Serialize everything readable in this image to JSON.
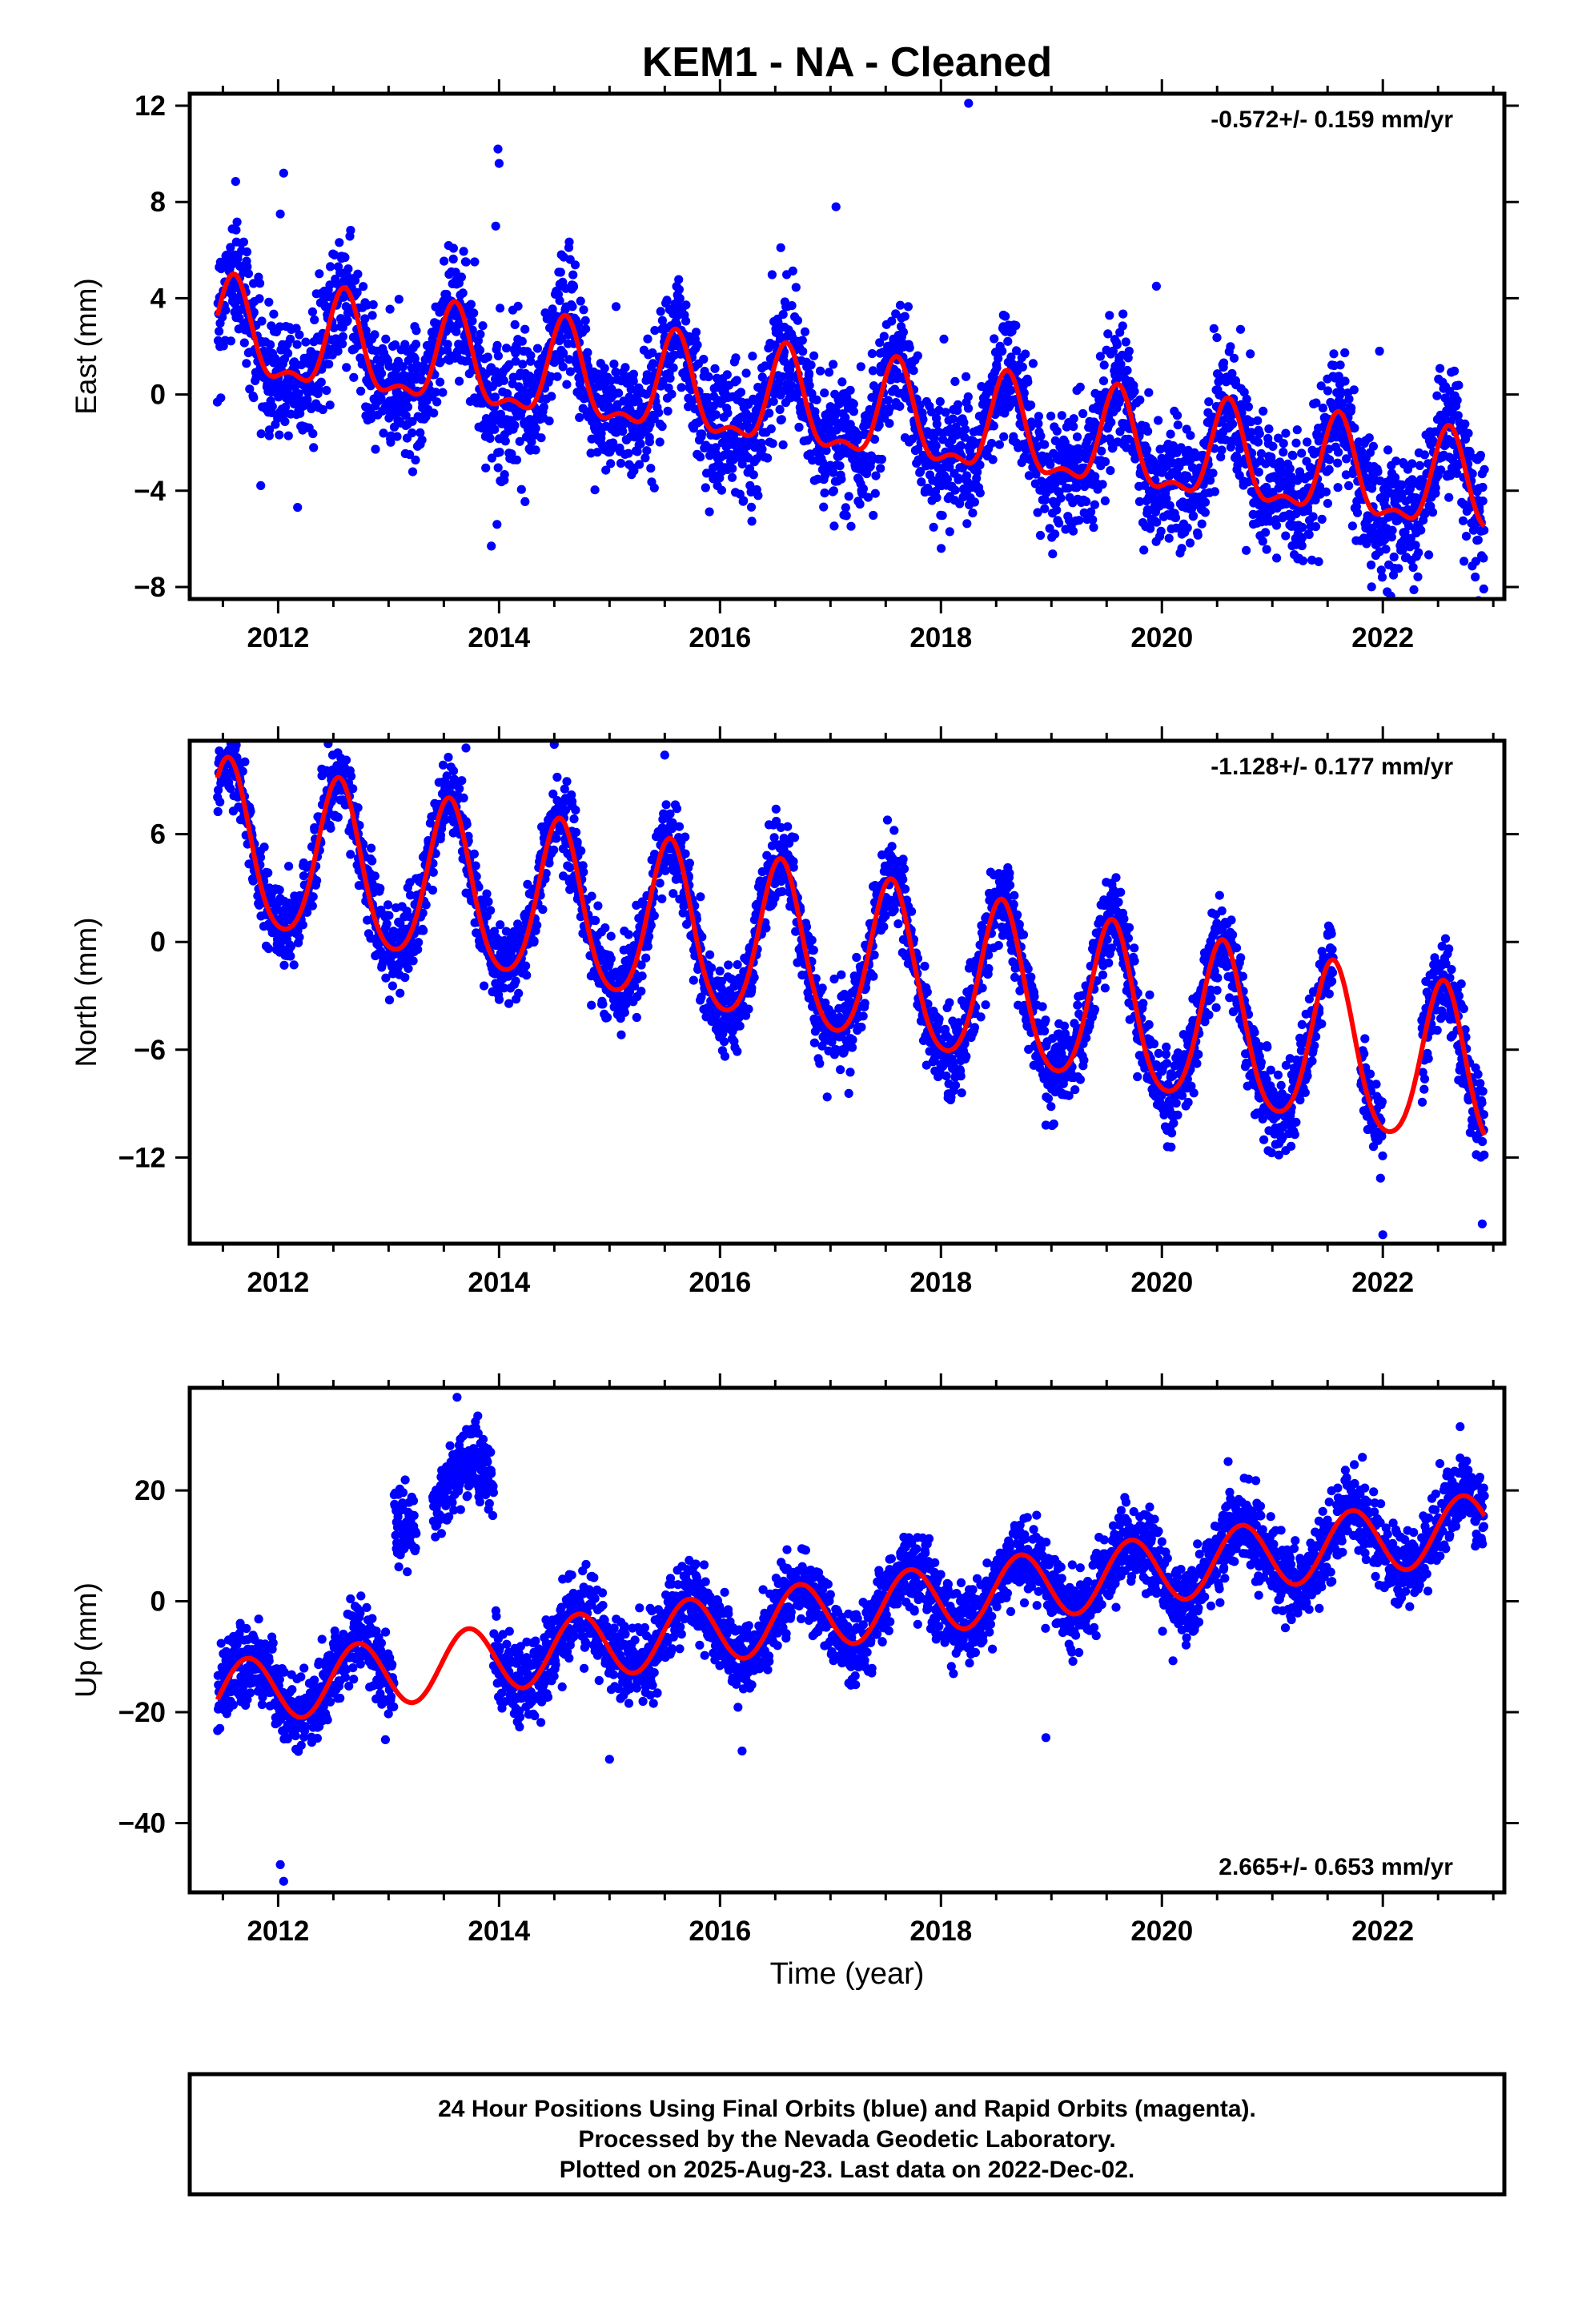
{
  "title": "KEM1  - NA - Cleaned",
  "colors": {
    "final_orbits": "#0000ff",
    "model_fit": "#ff0000",
    "rapid_orbits": "#ff00ff"
  },
  "chart_data": [
    {
      "type": "scatter",
      "component": "east",
      "ylabel": "East (mm)",
      "xlabel": "",
      "xlim": [
        2011.2,
        2023.1
      ],
      "ylim": [
        -8.5,
        12.5
      ],
      "x_ticks": [
        2012,
        2014,
        2016,
        2018,
        2020,
        2022
      ],
      "y_ticks": [
        -8,
        -4,
        0,
        4,
        8,
        12
      ],
      "rate_text": "-0.572+/- 0.159 mm/yr",
      "rate_position": "top-right",
      "model": {
        "start": 2011.45,
        "end": 2022.92,
        "offset": 2.4,
        "trend": -0.572,
        "annual_amp": 1.9,
        "annual_peak": 2011.6,
        "semiannual_amp": 0.8,
        "semiannual_peak": 2011.6,
        "steps": []
      },
      "scatter": {
        "noise": 1.3,
        "density_per_year": 330,
        "gaps": []
      },
      "outliers": [
        [
          2012.05,
          9.2
        ],
        [
          2012.02,
          7.5
        ],
        [
          2013.99,
          10.2
        ],
        [
          2014.0,
          9.6
        ],
        [
          2013.97,
          7.0
        ],
        [
          2017.05,
          7.8
        ],
        [
          2018.25,
          12.1
        ],
        [
          2016.55,
          6.1
        ],
        [
          2013.93,
          -6.3
        ],
        [
          2019.95,
          4.5
        ],
        [
          2021.97,
          1.8
        ],
        [
          2022.04,
          -8.2
        ],
        [
          2019.98,
          -5.9
        ]
      ]
    },
    {
      "type": "scatter",
      "component": "north",
      "ylabel": "North (mm)",
      "xlabel": "",
      "xlim": [
        2011.2,
        2023.1
      ],
      "ylim": [
        -16.8,
        11.2
      ],
      "x_ticks": [
        2012,
        2014,
        2016,
        2018,
        2020,
        2022
      ],
      "y_ticks": [
        -12,
        -6,
        0,
        6
      ],
      "rate_text": "-1.128+/- 0.177 mm/yr",
      "rate_position": "top-right",
      "model": {
        "start": 2011.45,
        "end": 2022.92,
        "offset": 5.3,
        "trend": -1.128,
        "annual_amp": 4.5,
        "annual_peak": 2011.55,
        "semiannual_amp": 0.6,
        "semiannual_peak": 2011.55,
        "steps": []
      },
      "scatter": {
        "noise": 1.15,
        "density_per_year": 330,
        "gaps": [
          [
            2021.55,
            2021.8
          ],
          [
            2022.0,
            2022.35
          ]
        ]
      },
      "outliers": [
        [
          2014.5,
          11.0
        ],
        [
          2015.5,
          10.4
        ],
        [
          2013.7,
          10.8
        ],
        [
          2020.05,
          -11.4
        ],
        [
          2022.0,
          -16.3
        ],
        [
          2022.9,
          -15.7
        ],
        [
          2018.95,
          -10.2
        ]
      ]
    },
    {
      "type": "scatter",
      "component": "up",
      "ylabel": "Up (mm)",
      "xlabel": "Time (year)",
      "xlim": [
        2011.2,
        2023.1
      ],
      "ylim": [
        -52.5,
        38.5
      ],
      "x_ticks": [
        2012,
        2014,
        2016,
        2018,
        2020,
        2022
      ],
      "y_ticks": [
        -40,
        -20,
        0,
        20
      ],
      "rate_text": "2.665+/- 0.653 mm/yr",
      "rate_position": "bottom-right",
      "model": {
        "start": 2011.45,
        "end": 2022.92,
        "offset": -17.0,
        "trend": 2.665,
        "annual_amp": 6.0,
        "annual_peak": 2011.72,
        "semiannual_amp": 0.0,
        "semiannual_peak": 2011.72,
        "steps": []
      },
      "scatter": {
        "noise": 3.5,
        "density_per_year": 330,
        "gaps": [
          [
            2013.25,
            2013.4
          ]
        ],
        "shifted_segments": [
          {
            "from": 2013.05,
            "to": 2013.95,
            "shift": 30
          }
        ]
      },
      "outliers": [
        [
          2013.62,
          36.8
        ],
        [
          2012.05,
          -50.5
        ],
        [
          2012.02,
          -47.5
        ],
        [
          2022.7,
          31.5
        ],
        [
          2020.6,
          25.2
        ],
        [
          2016.2,
          -27.0
        ],
        [
          2015.0,
          -28.5
        ],
        [
          2018.95,
          -24.6
        ]
      ]
    }
  ],
  "footer": {
    "line1": "24 Hour Positions Using Final Orbits (blue) and Rapid Orbits (magenta).",
    "line2": "Processed by the Nevada Geodetic Laboratory.",
    "line3": "Plotted on 2025-Aug-23. Last data on 2022-Dec-02."
  }
}
